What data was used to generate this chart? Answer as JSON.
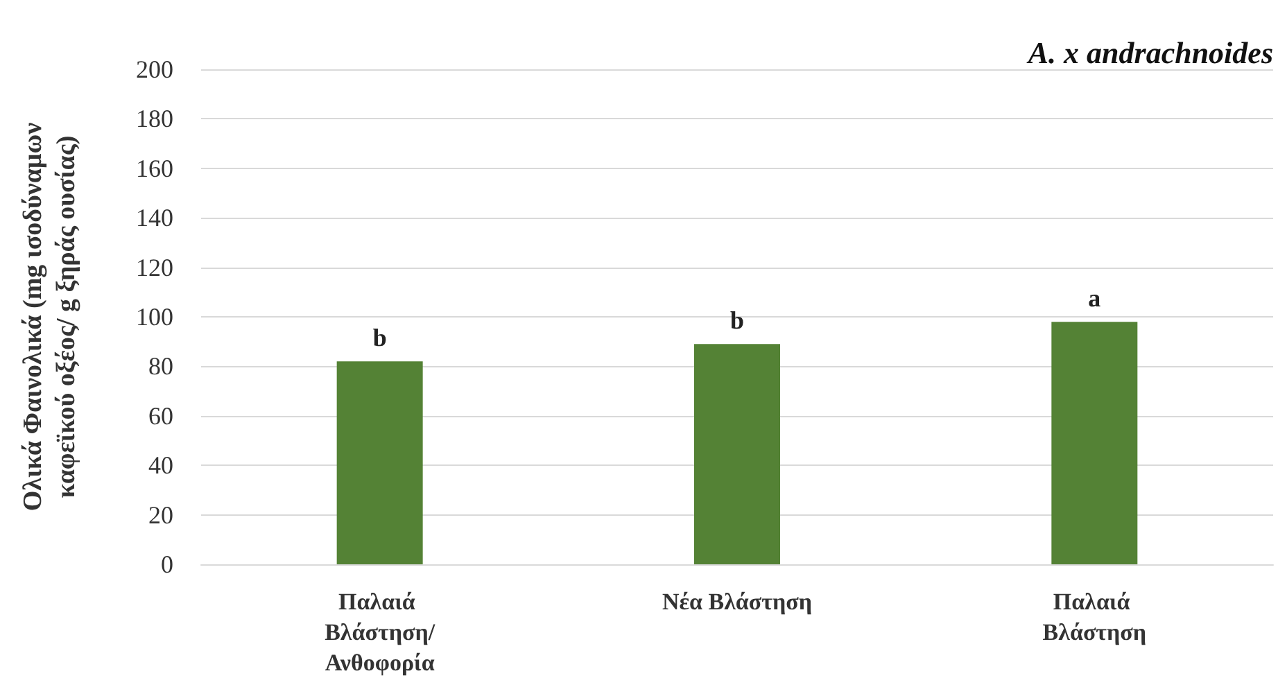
{
  "chart_data": {
    "type": "bar",
    "title": "A. x andrachnoides",
    "ylabel": "Ολικά Φαινολικά (mg ισοδύναμων καφεϊκού οξέος/ g ξηράς ουσίας)",
    "categories": [
      "Παλαιά Βλάστηση/Ανθοφορία",
      "Νέα Βλάστηση",
      "Παλαιά Βλάστηση"
    ],
    "values": [
      82,
      89,
      98
    ],
    "color": "#548235",
    "ylim": [
      0,
      200
    ],
    "yticks": [
      0,
      20,
      40,
      60,
      80,
      100,
      120,
      140,
      160,
      180,
      200
    ],
    "grid": true,
    "annotations": [
      {
        "text": "b",
        "x": "Παλαιά Βλάστηση/Ανθοφορία",
        "y": 82
      },
      {
        "text": "b",
        "x": "Νέα Βλάστηση",
        "y": 89
      },
      {
        "text": "a",
        "x": "Παλαιά Βλάστηση",
        "y": 98
      }
    ]
  }
}
